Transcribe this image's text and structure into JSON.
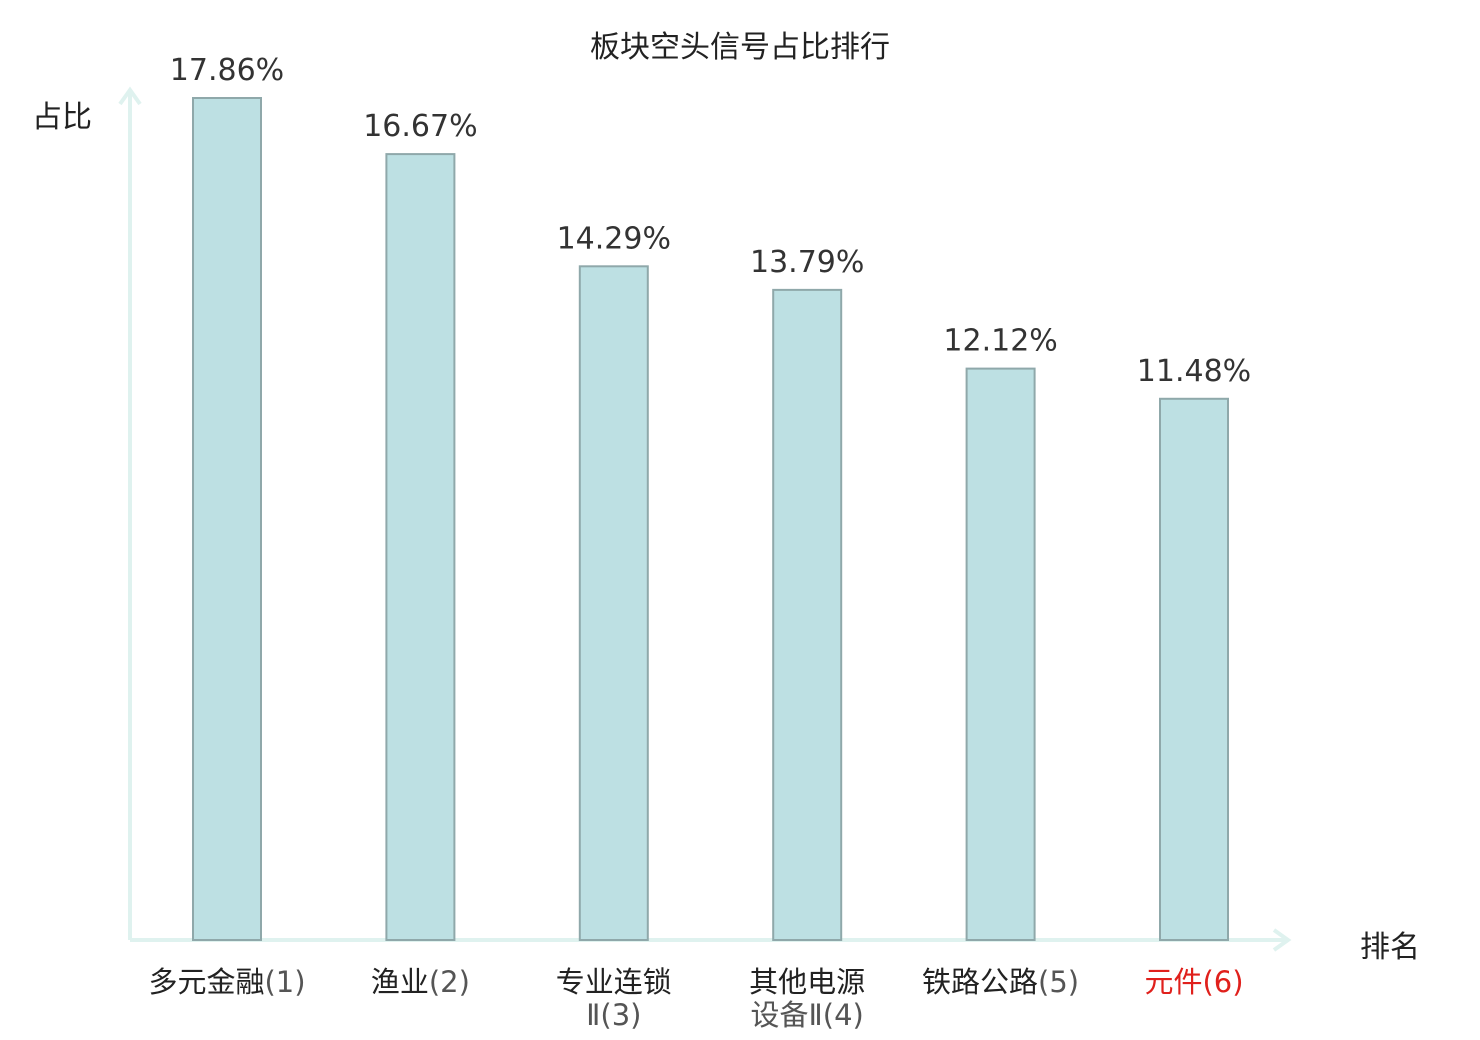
{
  "chart_data": {
    "type": "bar",
    "title": "板块空头信号占比排行",
    "ylabel": "占比",
    "xlabel": "排名",
    "ylim": [
      0,
      17.86
    ],
    "categories": [
      {
        "name": "多元金融",
        "line2": "",
        "rank": "(1)"
      },
      {
        "name": "渔业",
        "line2": "",
        "rank": "(2)"
      },
      {
        "name": "专业连锁",
        "line2": "Ⅱ(3)",
        "rank": ""
      },
      {
        "name": "其他电源",
        "line2": "设备Ⅱ(4)",
        "rank": ""
      },
      {
        "name": "铁路公路",
        "line2": "",
        "rank": "(5)"
      },
      {
        "name": "元件",
        "line2": "",
        "rank": "(6)"
      }
    ],
    "values": [
      17.86,
      16.67,
      14.29,
      13.79,
      12.12,
      11.48
    ],
    "value_labels": [
      "17.86%",
      "16.67%",
      "14.29%",
      "13.79%",
      "12.12%",
      "11.48%"
    ],
    "highlight_index": 5,
    "colors": {
      "bar_fill": "#bde0e3",
      "bar_stroke": "#8fa8aa",
      "axis": "#dff2ef",
      "highlight_text": "#e0201c",
      "text": "#222222"
    },
    "grid": false
  }
}
